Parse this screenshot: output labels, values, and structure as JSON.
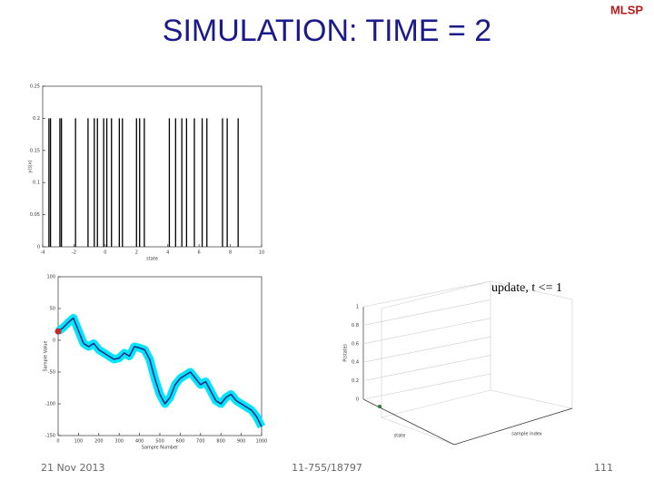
{
  "title": "SIMULATION: TIME = 2",
  "logo": "MLSP",
  "annotation": "update, t <= 1",
  "footer": {
    "date": "21  Nov 2013",
    "course": "11-755/18797",
    "page": "111"
  },
  "chart_data": [
    {
      "type": "stem",
      "xlabel": "state",
      "ylabel": "y(s|x)",
      "x": [
        -3.6,
        -3.5,
        -2.9,
        -2.8,
        -1.9,
        -1.1,
        -0.7,
        -0.5,
        -0.1,
        0.1,
        0.4,
        0.9,
        1.1,
        2.0,
        2.2,
        2.5,
        4.1,
        4.5,
        4.9,
        5.2,
        5.7,
        6.2,
        6.5,
        7.5,
        7.8,
        8.5
      ],
      "values": [
        0.2,
        0.2,
        0.2,
        0.2,
        0.2,
        0.2,
        0.2,
        0.2,
        0.2,
        0.2,
        0.2,
        0.2,
        0.2,
        0.2,
        0.2,
        0.2,
        0.2,
        0.2,
        0.2,
        0.2,
        0.2,
        0.2,
        0.2,
        0.2,
        0.2,
        0.2
      ],
      "color": "#000000",
      "xlim": [
        -4,
        10
      ],
      "xticks": [
        -4,
        -2,
        0,
        2,
        4,
        6,
        8,
        10
      ],
      "ylim": [
        0,
        0.25
      ],
      "yticks": [
        0,
        0.05,
        0.1,
        0.15,
        0.2,
        0.25
      ]
    },
    {
      "type": "line",
      "xlabel": "Sample Number",
      "ylabel": "Sample Value",
      "x": [
        0,
        25,
        50,
        75,
        100,
        125,
        150,
        175,
        200,
        225,
        250,
        275,
        300,
        325,
        350,
        375,
        400,
        425,
        450,
        475,
        500,
        525,
        550,
        575,
        600,
        625,
        650,
        675,
        700,
        725,
        750,
        775,
        800,
        825,
        850,
        875,
        900,
        925,
        950,
        975,
        1000
      ],
      "values": [
        14,
        20,
        28,
        35,
        15,
        -5,
        -10,
        -5,
        -15,
        -20,
        -25,
        -30,
        -28,
        -20,
        -25,
        -10,
        -12,
        -15,
        -30,
        -60,
        -85,
        -100,
        -90,
        -70,
        -60,
        -55,
        -50,
        -60,
        -70,
        -65,
        -80,
        -95,
        -100,
        -90,
        -85,
        -95,
        -100,
        -105,
        -110,
        -120,
        -136
      ],
      "color": "#1a237e",
      "band_color": "#00e5ff",
      "marker": {
        "x": 0,
        "y": 14,
        "color": "#c62828"
      },
      "xlim": [
        0,
        1000
      ],
      "xticks": [
        0,
        100,
        200,
        300,
        400,
        500,
        600,
        700,
        800,
        900,
        1000
      ],
      "ylim": [
        -150,
        100
      ],
      "yticks": [
        -150,
        -100,
        -50,
        0,
        50,
        100
      ]
    },
    {
      "type": "surface3d",
      "zlabel": "P(state)",
      "xlabel": "sample index",
      "ylabel": "state",
      "zlim": [
        0,
        1
      ],
      "zticks": [
        0,
        0.2,
        0.4,
        0.6,
        0.8,
        1
      ]
    }
  ]
}
